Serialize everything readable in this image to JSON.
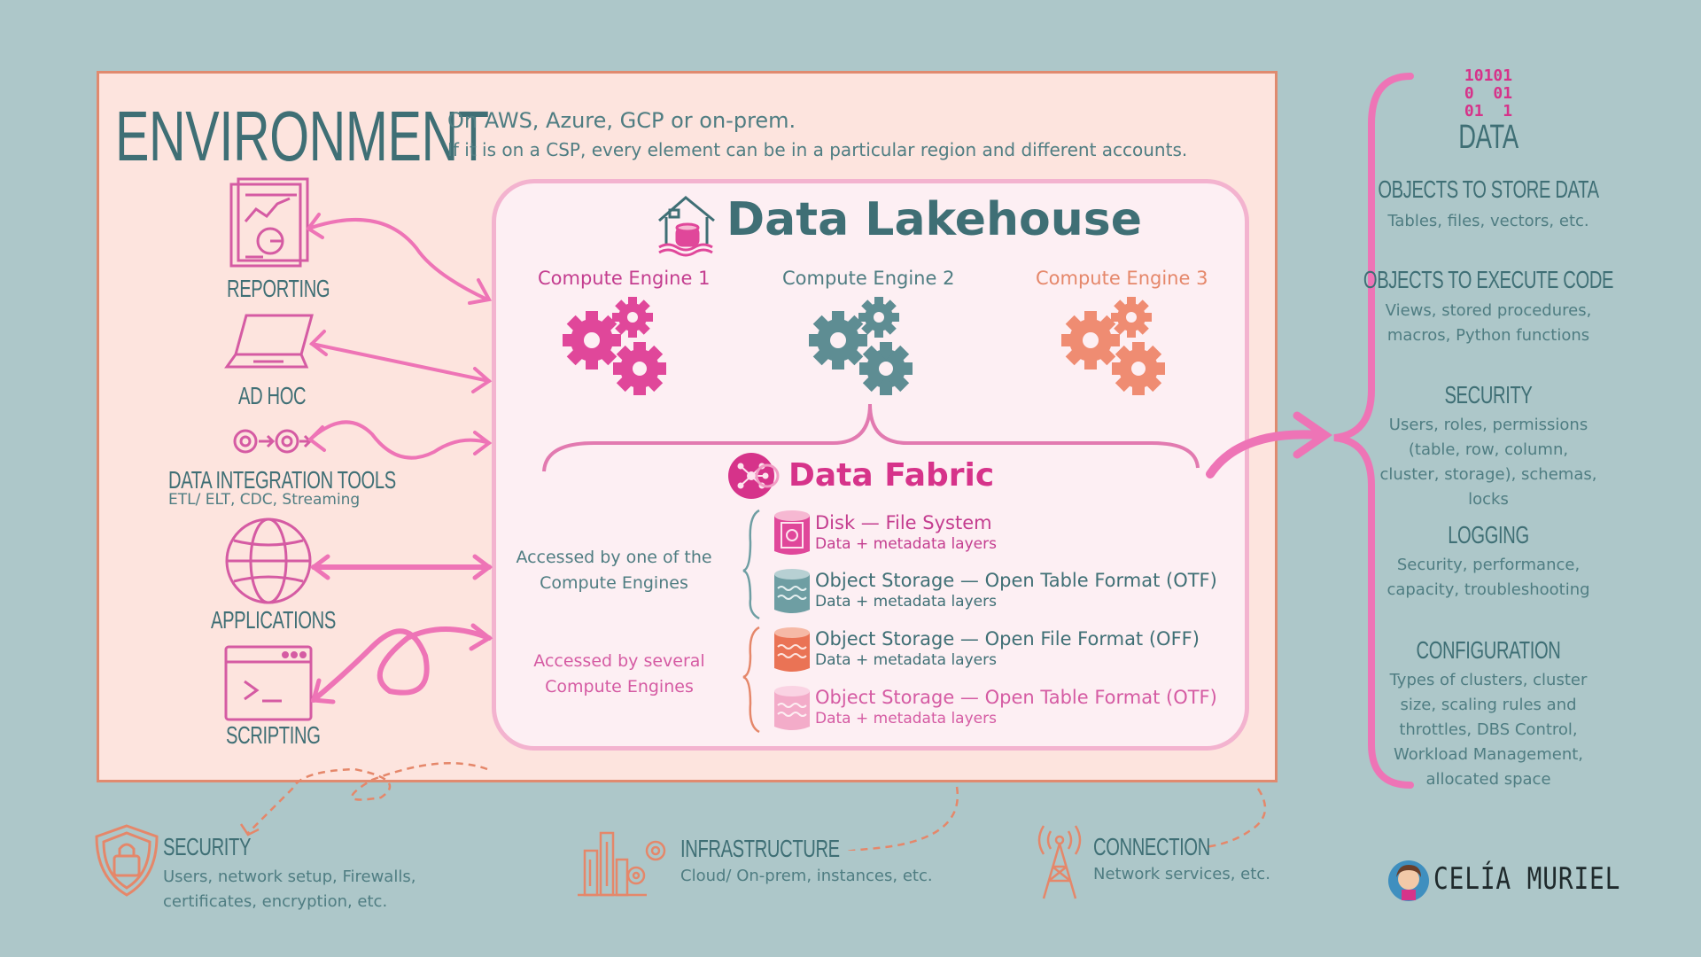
{
  "environment": {
    "title": "ENVIRONMENT",
    "line1": "On AWS, Azure, GCP or on-prem.",
    "line2": "If it is on a CSP, every element can be in a particular region and different accounts."
  },
  "consumers": [
    {
      "label": "REPORTING",
      "sub": ""
    },
    {
      "label": "AD HOC",
      "sub": ""
    },
    {
      "label": "DATA INTEGRATION TOOLS",
      "sub": "ETL/ ELT, CDC, Streaming"
    },
    {
      "label": "APPLICATIONS",
      "sub": ""
    },
    {
      "label": "SCRIPTING",
      "sub": ""
    }
  ],
  "lakehouse": {
    "title": "Data Lakehouse",
    "engines": [
      {
        "label": "Compute Engine 1",
        "color": "#e0479a"
      },
      {
        "label": "Compute Engine 2",
        "color": "#5e8d93"
      },
      {
        "label": "Compute Engine 3",
        "color": "#ef8c72"
      }
    ]
  },
  "fabric": {
    "title": "Data Fabric",
    "accessed_one": "Accessed by one of the Compute Engines",
    "accessed_several": "Accessed by several Compute Engines",
    "layers": [
      {
        "title": "Disk — File System",
        "sub": "Data + metadata layers",
        "color": "#e0479a"
      },
      {
        "title": "Object Storage — Open Table Format (OTF)",
        "sub": "Data + metadata layers",
        "color": "#6e9ea3"
      },
      {
        "title": "Object Storage — Open File Format (OFF)",
        "sub": "Data + metadata layers",
        "color": "#ea7355"
      },
      {
        "title": "Object Storage — Open Table Format (OTF)",
        "sub": "Data + metadata layers",
        "color": "#f3acc9"
      }
    ]
  },
  "data_panel": {
    "binary": [
      "10101",
      "0  01",
      "01  1"
    ],
    "title": "DATA",
    "sections": [
      {
        "title": "OBJECTS TO STORE DATA",
        "text": "Tables, files, vectors, etc."
      },
      {
        "title": "OBJECTS TO EXECUTE CODE",
        "text": "Views, stored procedures, macros, Python functions"
      },
      {
        "title": "SECURITY",
        "text": "Users, roles, permissions (table, row, column, cluster, storage), schemas, locks"
      },
      {
        "title": "LOGGING",
        "text": "Security, performance, capacity, troubleshooting"
      },
      {
        "title": "CONFIGURATION",
        "text": "Types of clusters, cluster size, scaling rules and throttles, DBS Control, Workload Management, allocated space"
      }
    ]
  },
  "bottom": [
    {
      "title": "SECURITY",
      "text": "Users, network setup, Firewalls, certificates, encryption, etc."
    },
    {
      "title": "INFRASTRUCTURE",
      "text": "Cloud/ On-prem, instances, etc."
    },
    {
      "title": "CONNECTION",
      "text": "Network services, etc."
    }
  ],
  "signature": "CELÍA MURIEL"
}
